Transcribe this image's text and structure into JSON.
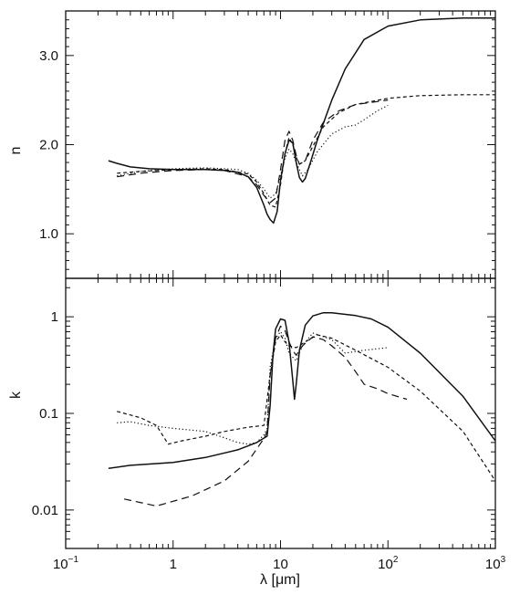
{
  "chart_data": [
    {
      "type": "line",
      "panel": "top",
      "ylabel": "n",
      "xlabel": "",
      "xscale": "log",
      "yscale": "linear",
      "xlim": [
        0.1,
        1000
      ],
      "ylim": [
        0.5,
        3.5
      ],
      "ytick_labels": [
        {
          "value": 1.0,
          "label": "1.0"
        },
        {
          "value": 2.0,
          "label": "2.0"
        },
        {
          "value": 3.0,
          "label": "3.0"
        }
      ],
      "series": [
        {
          "style": "solid",
          "points": [
            [
              0.25,
              1.82
            ],
            [
              0.3,
              1.79
            ],
            [
              0.4,
              1.75
            ],
            [
              0.6,
              1.73
            ],
            [
              1,
              1.72
            ],
            [
              2,
              1.72
            ],
            [
              3,
              1.71
            ],
            [
              4,
              1.69
            ],
            [
              5,
              1.64
            ],
            [
              6,
              1.52
            ],
            [
              7,
              1.32
            ],
            [
              7.5,
              1.22
            ],
            [
              8,
              1.16
            ],
            [
              8.6,
              1.12
            ],
            [
              9.3,
              1.25
            ],
            [
              10,
              1.6
            ],
            [
              11,
              1.9
            ],
            [
              12,
              2.05
            ],
            [
              13,
              2.02
            ],
            [
              14,
              1.8
            ],
            [
              15,
              1.63
            ],
            [
              16,
              1.58
            ],
            [
              17,
              1.62
            ],
            [
              19,
              1.8
            ],
            [
              22,
              2.05
            ],
            [
              30,
              2.5
            ],
            [
              40,
              2.85
            ],
            [
              60,
              3.18
            ],
            [
              100,
              3.33
            ],
            [
              200,
              3.4
            ],
            [
              500,
              3.42
            ],
            [
              1000,
              3.42
            ]
          ]
        },
        {
          "style": "dotted",
          "points": [
            [
              0.3,
              1.65
            ],
            [
              0.5,
              1.7
            ],
            [
              1,
              1.73
            ],
            [
              2,
              1.74
            ],
            [
              3,
              1.73
            ],
            [
              4,
              1.72
            ],
            [
              5,
              1.68
            ],
            [
              6,
              1.6
            ],
            [
              7,
              1.5
            ],
            [
              8,
              1.4
            ],
            [
              9,
              1.45
            ],
            [
              10,
              1.65
            ],
            [
              11,
              1.85
            ],
            [
              12,
              1.95
            ],
            [
              13,
              1.9
            ],
            [
              14,
              1.8
            ],
            [
              15,
              1.72
            ],
            [
              16,
              1.65
            ],
            [
              18,
              1.72
            ],
            [
              22,
              1.92
            ],
            [
              30,
              2.12
            ],
            [
              40,
              2.2
            ],
            [
              50,
              2.22
            ],
            [
              60,
              2.28
            ],
            [
              80,
              2.38
            ],
            [
              100,
              2.44
            ]
          ]
        },
        {
          "style": "short-dash",
          "points": [
            [
              0.3,
              1.68
            ],
            [
              0.5,
              1.7
            ],
            [
              1,
              1.72
            ],
            [
              2,
              1.73
            ],
            [
              3,
              1.72
            ],
            [
              5,
              1.67
            ],
            [
              6,
              1.58
            ],
            [
              7,
              1.45
            ],
            [
              8,
              1.32
            ],
            [
              9,
              1.3
            ],
            [
              10,
              1.55
            ],
            [
              11,
              1.9
            ],
            [
              12,
              2.08
            ],
            [
              13,
              2.0
            ],
            [
              14,
              1.86
            ],
            [
              15,
              1.78
            ],
            [
              17,
              1.82
            ],
            [
              20,
              1.98
            ],
            [
              25,
              2.2
            ],
            [
              35,
              2.36
            ],
            [
              50,
              2.45
            ],
            [
              100,
              2.52
            ],
            [
              200,
              2.55
            ],
            [
              500,
              2.56
            ],
            [
              1000,
              2.56
            ]
          ]
        },
        {
          "style": "long-dash",
          "points": [
            [
              0.3,
              1.64
            ],
            [
              0.5,
              1.68
            ],
            [
              1,
              1.71
            ],
            [
              2,
              1.72
            ],
            [
              3,
              1.71
            ],
            [
              5,
              1.64
            ],
            [
              6,
              1.55
            ],
            [
              7,
              1.43
            ],
            [
              8,
              1.35
            ],
            [
              9,
              1.4
            ],
            [
              10,
              1.72
            ],
            [
              11,
              2.05
            ],
            [
              12,
              2.15
            ],
            [
              13,
              2.05
            ],
            [
              14,
              1.88
            ],
            [
              15,
              1.78
            ],
            [
              17,
              1.82
            ],
            [
              20,
              2.05
            ],
            [
              25,
              2.25
            ],
            [
              35,
              2.38
            ],
            [
              50,
              2.45
            ],
            [
              100,
              2.5
            ]
          ]
        }
      ]
    },
    {
      "type": "line",
      "panel": "bottom",
      "ylabel": "k",
      "xlabel": "λ [μm]",
      "xscale": "log",
      "yscale": "log",
      "xlim": [
        0.1,
        1000
      ],
      "ylim": [
        0.004,
        2.5
      ],
      "x_tick_labels": [
        {
          "value": 0.1,
          "base": "10",
          "exp": "−1"
        },
        {
          "value": 1,
          "base": "1",
          "exp": ""
        },
        {
          "value": 10,
          "base": "10",
          "exp": ""
        },
        {
          "value": 100,
          "base": "10",
          "exp": "2"
        },
        {
          "value": 1000,
          "base": "10",
          "exp": "3"
        }
      ],
      "ytick_labels": [
        {
          "value": 0.01,
          "label": "0.01"
        },
        {
          "value": 0.1,
          "label": "0.1"
        },
        {
          "value": 1,
          "label": "1"
        }
      ],
      "series": [
        {
          "style": "solid",
          "points": [
            [
              0.25,
              0.027
            ],
            [
              0.4,
              0.029
            ],
            [
              1,
              0.031
            ],
            [
              2,
              0.035
            ],
            [
              4,
              0.042
            ],
            [
              6,
              0.05
            ],
            [
              7.5,
              0.058
            ],
            [
              8,
              0.12
            ],
            [
              8.5,
              0.4
            ],
            [
              9,
              0.75
            ],
            [
              10,
              0.95
            ],
            [
              11,
              0.92
            ],
            [
              12,
              0.55
            ],
            [
              13,
              0.22
            ],
            [
              13.5,
              0.14
            ],
            [
              14,
              0.2
            ],
            [
              15,
              0.45
            ],
            [
              17,
              0.82
            ],
            [
              20,
              1.02
            ],
            [
              25,
              1.1
            ],
            [
              30,
              1.1
            ],
            [
              50,
              1.03
            ],
            [
              70,
              0.95
            ],
            [
              100,
              0.78
            ],
            [
              200,
              0.42
            ],
            [
              500,
              0.15
            ],
            [
              1000,
              0.052
            ]
          ]
        },
        {
          "style": "dotted",
          "points": [
            [
              0.3,
              0.08
            ],
            [
              0.4,
              0.082
            ],
            [
              0.6,
              0.075
            ],
            [
              1,
              0.07
            ],
            [
              2,
              0.065
            ],
            [
              3,
              0.056
            ],
            [
              4,
              0.05
            ],
            [
              5,
              0.048
            ],
            [
              6,
              0.05
            ],
            [
              7,
              0.06
            ],
            [
              7.5,
              0.07
            ],
            [
              8,
              0.3
            ],
            [
              9,
              0.6
            ],
            [
              10,
              0.7
            ],
            [
              11,
              0.6
            ],
            [
              12,
              0.42
            ],
            [
              14,
              0.35
            ],
            [
              16,
              0.5
            ],
            [
              20,
              0.68
            ],
            [
              30,
              0.58
            ],
            [
              40,
              0.42
            ],
            [
              60,
              0.45
            ],
            [
              100,
              0.48
            ]
          ]
        },
        {
          "style": "short-dash",
          "points": [
            [
              0.3,
              0.105
            ],
            [
              0.5,
              0.09
            ],
            [
              0.7,
              0.075
            ],
            [
              0.9,
              0.048
            ],
            [
              1.2,
              0.052
            ],
            [
              2,
              0.058
            ],
            [
              3,
              0.065
            ],
            [
              5,
              0.072
            ],
            [
              7,
              0.075
            ],
            [
              8,
              0.25
            ],
            [
              9,
              0.55
            ],
            [
              10,
              0.65
            ],
            [
              11,
              0.55
            ],
            [
              12,
              0.5
            ],
            [
              14,
              0.48
            ],
            [
              17,
              0.55
            ],
            [
              22,
              0.65
            ],
            [
              30,
              0.6
            ],
            [
              50,
              0.45
            ],
            [
              100,
              0.3
            ],
            [
              200,
              0.17
            ],
            [
              500,
              0.065
            ],
            [
              1000,
              0.02
            ]
          ]
        },
        {
          "style": "long-dash",
          "points": [
            [
              0.35,
              0.013
            ],
            [
              0.7,
              0.011
            ],
            [
              1.5,
              0.014
            ],
            [
              3,
              0.02
            ],
            [
              5,
              0.032
            ],
            [
              7,
              0.055
            ],
            [
              7.5,
              0.065
            ],
            [
              8,
              0.25
            ],
            [
              9,
              0.6
            ],
            [
              10,
              0.8
            ],
            [
              11,
              0.72
            ],
            [
              12,
              0.55
            ],
            [
              13,
              0.45
            ],
            [
              14,
              0.4
            ],
            [
              16,
              0.5
            ],
            [
              20,
              0.62
            ],
            [
              25,
              0.58
            ],
            [
              30,
              0.5
            ],
            [
              40,
              0.38
            ],
            [
              50,
              0.27
            ],
            [
              60,
              0.2
            ],
            [
              80,
              0.18
            ],
            [
              100,
              0.16
            ],
            [
              150,
              0.14
            ]
          ]
        }
      ]
    }
  ]
}
